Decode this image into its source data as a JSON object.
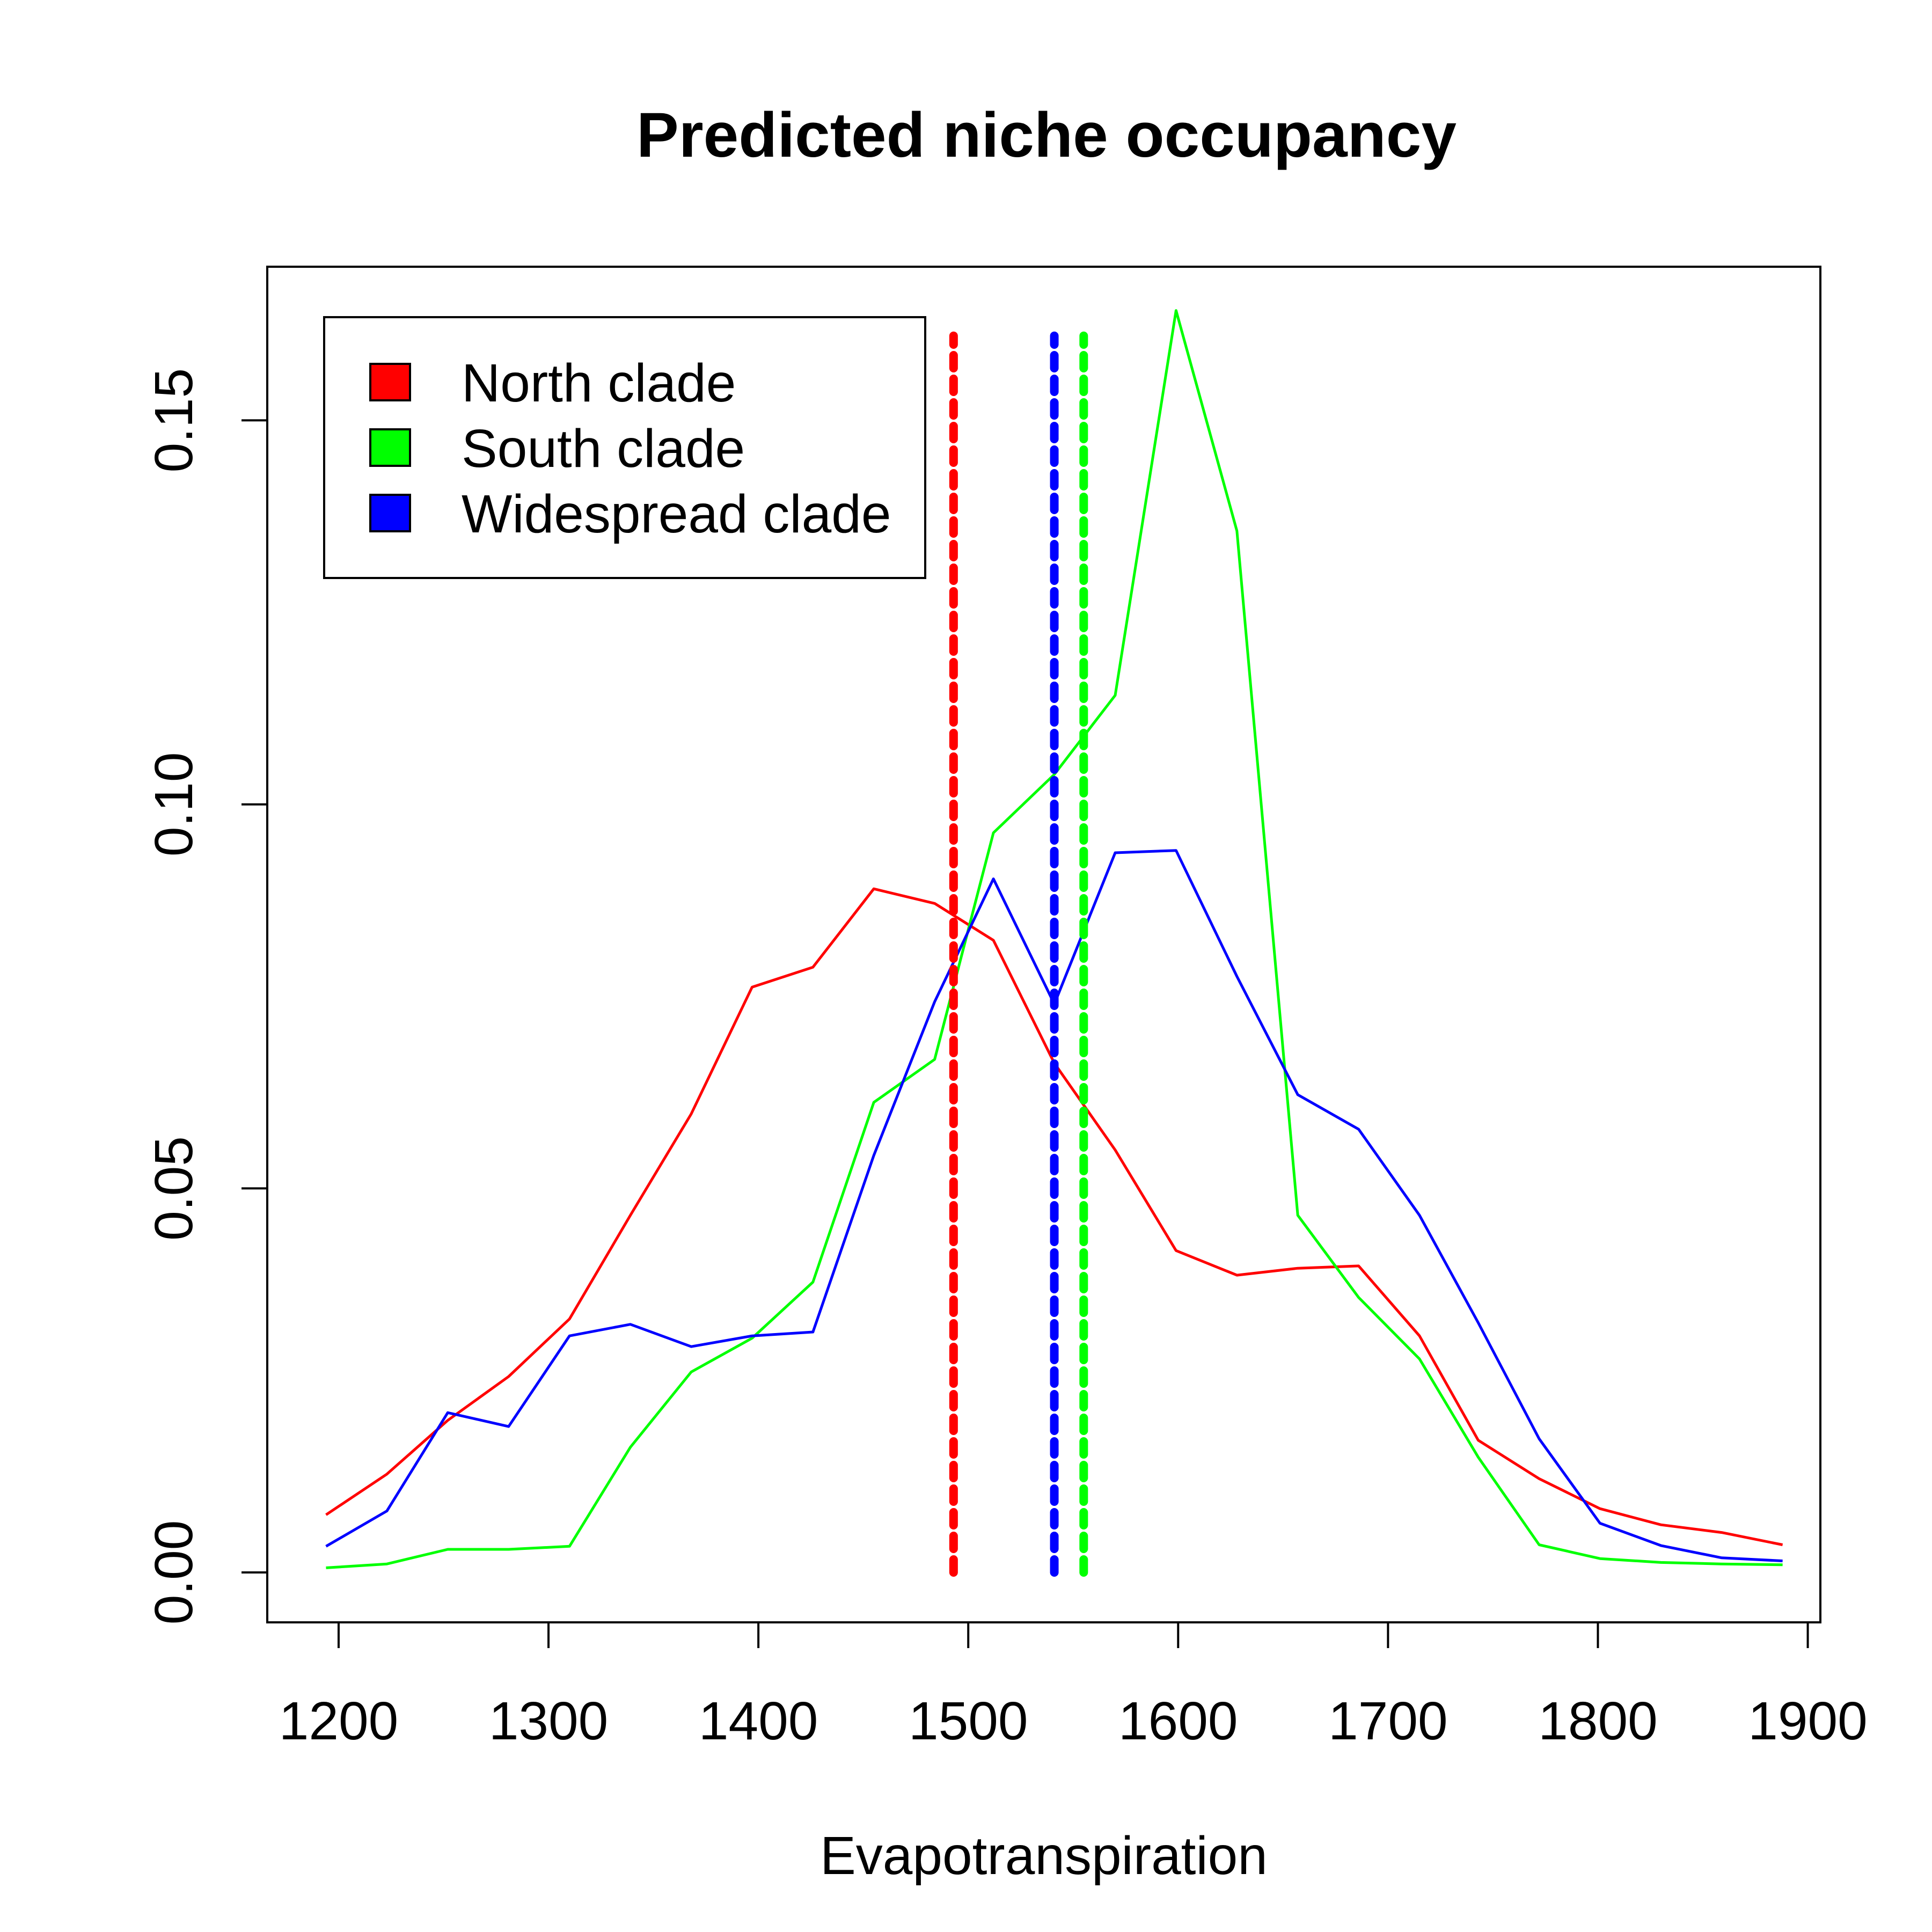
{
  "chart_data": {
    "type": "line",
    "title": "Predicted niche occupancy",
    "xlabel": "Evapotranspiration",
    "ylabel": "",
    "xlim": [
      1166,
      1906
    ],
    "ylim": [
      -0.0065,
      0.17
    ],
    "x_ticks": [
      1200,
      1300,
      1400,
      1500,
      1600,
      1700,
      1800,
      1900
    ],
    "x_tick_labels": [
      "1200",
      "1300",
      "1400",
      "1500",
      "1600",
      "1700",
      "1800",
      "1900"
    ],
    "y_ticks": [
      0.0,
      0.05,
      0.1,
      0.15
    ],
    "y_tick_labels": [
      "0.00",
      "0.05",
      "0.10",
      "0.15"
    ],
    "grid": false,
    "legend_position": "top-left",
    "x": [
      1194,
      1223,
      1252,
      1281,
      1310,
      1339,
      1368,
      1397,
      1426,
      1455,
      1484,
      1512,
      1541,
      1570,
      1599,
      1628,
      1657,
      1686,
      1715,
      1743,
      1772,
      1801,
      1830,
      1859,
      1888
    ],
    "series": [
      {
        "name": "North clade",
        "color": "#ff0000",
        "values": [
          0.0075,
          0.0128,
          0.0198,
          0.0255,
          0.033,
          0.0465,
          0.0597,
          0.0762,
          0.0788,
          0.089,
          0.0871,
          0.0823,
          0.0663,
          0.055,
          0.0419,
          0.0387,
          0.0396,
          0.0399,
          0.0308,
          0.0172,
          0.0122,
          0.0083,
          0.0062,
          0.0052,
          0.0036
        ]
      },
      {
        "name": "South clade",
        "color": "#00ff00",
        "values": [
          0.0006,
          0.0011,
          0.003,
          0.003,
          0.0034,
          0.0163,
          0.0261,
          0.0305,
          0.0378,
          0.0612,
          0.0668,
          0.0963,
          0.1039,
          0.1142,
          0.1643,
          0.1356,
          0.0465,
          0.0358,
          0.0278,
          0.015,
          0.0036,
          0.0018,
          0.0013,
          0.0011,
          0.001
        ]
      },
      {
        "name": "Widespread clade",
        "color": "#0000ff",
        "values": [
          0.0034,
          0.008,
          0.0208,
          0.019,
          0.0308,
          0.0323,
          0.0294,
          0.0308,
          0.0313,
          0.0543,
          0.0743,
          0.0903,
          0.074,
          0.0937,
          0.094,
          0.0776,
          0.0622,
          0.0577,
          0.0465,
          0.0325,
          0.0174,
          0.0064,
          0.0035,
          0.0019,
          0.0015
        ]
      }
    ],
    "mean_lines": [
      {
        "name": "North clade",
        "color": "#ff0000",
        "x": 1493,
        "y_range": [
          0.0,
          0.161
        ]
      },
      {
        "name": "Widespread clade",
        "color": "#0000ff",
        "x": 1541,
        "y_range": [
          0.0,
          0.161
        ]
      },
      {
        "name": "South clade",
        "color": "#00ff00",
        "x": 1555,
        "y_range": [
          0.0,
          0.161
        ]
      }
    ],
    "legend": [
      {
        "label": "North clade",
        "color": "#ff0000"
      },
      {
        "label": "South clade",
        "color": "#00ff00"
      },
      {
        "label": "Widespread clade",
        "color": "#0000ff"
      }
    ]
  }
}
